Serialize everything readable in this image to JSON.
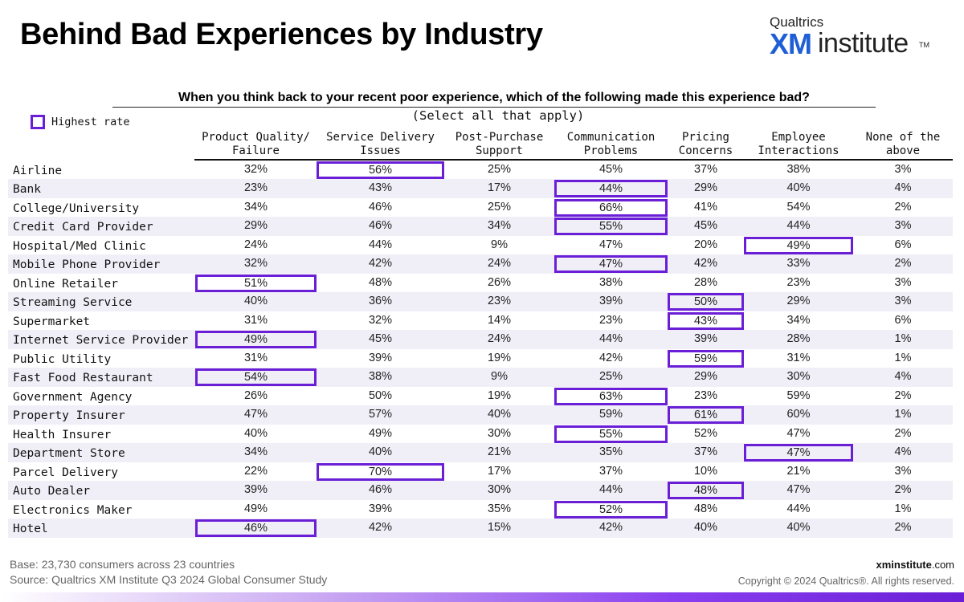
{
  "title": "Behind Bad Experiences by Industry",
  "logo": {
    "top": "Qualtrics",
    "xm": "XM",
    "inst": "institute",
    "tm": "TM"
  },
  "accent_color": "#6a1fd6",
  "legend": {
    "label": "Highest rate",
    "icon": "highlight-box-icon"
  },
  "chart_data": {
    "type": "table",
    "question": "When you think back to your recent poor experience, which of the following made this experience bad?",
    "subtitle": "(Select all that apply)",
    "columns": [
      {
        "line1": "Product Quality/",
        "line2": "Failure"
      },
      {
        "line1": "Service Delivery",
        "line2": "Issues"
      },
      {
        "line1": "Post-Purchase",
        "line2": "Support"
      },
      {
        "line1": "Communication",
        "line2": "Problems"
      },
      {
        "line1": "Pricing",
        "line2": "Concerns"
      },
      {
        "line1": "Employee",
        "line2": "Interactions"
      },
      {
        "line1": "None of the",
        "line2": "above"
      }
    ],
    "rows": [
      {
        "label": "Airline",
        "values": [
          "32%",
          "56%",
          "25%",
          "45%",
          "37%",
          "38%",
          "3%"
        ],
        "highlight": [
          1
        ]
      },
      {
        "label": "Bank",
        "values": [
          "23%",
          "43%",
          "17%",
          "44%",
          "29%",
          "40%",
          "4%"
        ],
        "highlight": [
          3
        ]
      },
      {
        "label": "College/University",
        "values": [
          "34%",
          "46%",
          "25%",
          "66%",
          "41%",
          "54%",
          "2%"
        ],
        "highlight": [
          3
        ]
      },
      {
        "label": "Credit Card Provider",
        "values": [
          "29%",
          "46%",
          "34%",
          "55%",
          "45%",
          "44%",
          "3%"
        ],
        "highlight": [
          3
        ]
      },
      {
        "label": "Hospital/Med Clinic",
        "values": [
          "24%",
          "44%",
          "9%",
          "47%",
          "20%",
          "49%",
          "6%"
        ],
        "highlight": [
          5
        ]
      },
      {
        "label": "Mobile Phone Provider",
        "values": [
          "32%",
          "42%",
          "24%",
          "47%",
          "42%",
          "33%",
          "2%"
        ],
        "highlight": [
          3
        ]
      },
      {
        "label": "Online Retailer",
        "values": [
          "51%",
          "48%",
          "26%",
          "38%",
          "28%",
          "23%",
          "3%"
        ],
        "highlight": [
          0
        ]
      },
      {
        "label": "Streaming Service",
        "values": [
          "40%",
          "36%",
          "23%",
          "39%",
          "50%",
          "29%",
          "3%"
        ],
        "highlight": [
          4
        ]
      },
      {
        "label": "Supermarket",
        "values": [
          "31%",
          "32%",
          "14%",
          "23%",
          "43%",
          "34%",
          "6%"
        ],
        "highlight": [
          4
        ]
      },
      {
        "label": "Internet Service Provider",
        "values": [
          "49%",
          "45%",
          "24%",
          "44%",
          "39%",
          "28%",
          "1%"
        ],
        "highlight": [
          0
        ]
      },
      {
        "label": "Public Utility",
        "values": [
          "31%",
          "39%",
          "19%",
          "42%",
          "59%",
          "31%",
          "1%"
        ],
        "highlight": [
          4
        ]
      },
      {
        "label": "Fast Food Restaurant",
        "values": [
          "54%",
          "38%",
          "9%",
          "25%",
          "29%",
          "30%",
          "4%"
        ],
        "highlight": [
          0
        ]
      },
      {
        "label": "Government Agency",
        "values": [
          "26%",
          "50%",
          "19%",
          "63%",
          "23%",
          "59%",
          "2%"
        ],
        "highlight": [
          3
        ]
      },
      {
        "label": "Property Insurer",
        "values": [
          "47%",
          "57%",
          "40%",
          "59%",
          "61%",
          "60%",
          "1%"
        ],
        "highlight": [
          4
        ]
      },
      {
        "label": "Health Insurer",
        "values": [
          "40%",
          "49%",
          "30%",
          "55%",
          "52%",
          "47%",
          "2%"
        ],
        "highlight": [
          3
        ]
      },
      {
        "label": "Department Store",
        "values": [
          "34%",
          "40%",
          "21%",
          "35%",
          "37%",
          "47%",
          "4%"
        ],
        "highlight": [
          5
        ]
      },
      {
        "label": "Parcel Delivery",
        "values": [
          "22%",
          "70%",
          "17%",
          "37%",
          "10%",
          "21%",
          "3%"
        ],
        "highlight": [
          1
        ]
      },
      {
        "label": "Auto Dealer",
        "values": [
          "39%",
          "46%",
          "30%",
          "44%",
          "48%",
          "47%",
          "2%"
        ],
        "highlight": [
          4
        ]
      },
      {
        "label": "Electronics Maker",
        "values": [
          "49%",
          "39%",
          "35%",
          "52%",
          "48%",
          "44%",
          "1%"
        ],
        "highlight": [
          3
        ]
      },
      {
        "label": "Hotel",
        "values": [
          "46%",
          "42%",
          "15%",
          "42%",
          "40%",
          "40%",
          "2%"
        ],
        "highlight": [
          0
        ]
      }
    ]
  },
  "footer": {
    "base": "Base: 23,730 consumers across 23 countries",
    "source": "Source: Qualtrics XM Institute Q3 2024 Global Consumer Study",
    "site_bold": "xminstitute",
    "site_rest": ".com",
    "copyright": "Copyright © 2024 Qualtrics®. All rights reserved."
  }
}
